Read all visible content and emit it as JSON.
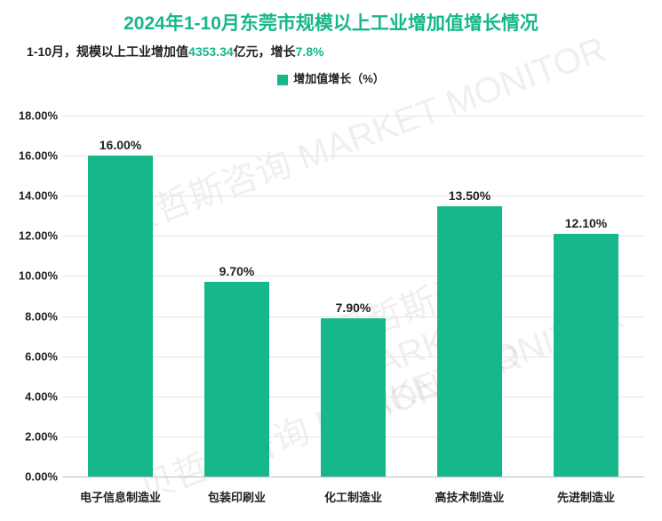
{
  "chart": {
    "type": "bar",
    "title": "2024年1-10月东莞市规模以上工业增加值增长情况",
    "title_fontsize": 21,
    "title_color": "#16b78b",
    "subtitle_prefix": "1-10月，规模以上工业增加值",
    "subtitle_value": "4353.34",
    "subtitle_mid": "亿元，增长",
    "subtitle_growth": "7.8%",
    "subtitle_fontsize": 14,
    "subtitle_text_color": "#222222",
    "subtitle_accent_color": "#16b78b",
    "legend_label": "增加值增长（%）",
    "legend_fontsize": 13,
    "legend_text_color": "#222222",
    "legend_marker_color": "#16b78b",
    "categories": [
      "电子信息制造业",
      "包装印刷业",
      "化工制造业",
      "高技术制造业",
      "先进制造业"
    ],
    "values": [
      16.0,
      9.7,
      7.9,
      13.5,
      12.1
    ],
    "value_labels": [
      "16.00%",
      "9.70%",
      "7.90%",
      "13.50%",
      "12.10%"
    ],
    "bar_color": "#16b78b",
    "bar_width": 0.55,
    "value_label_fontsize": 14,
    "value_label_color": "#222222",
    "ymin": 0,
    "ymax": 18,
    "ytick_step": 2,
    "yticks": [
      0,
      2,
      4,
      6,
      8,
      10,
      12,
      14,
      16,
      18
    ],
    "ytick_labels": [
      "0.00%",
      "2.00%",
      "4.00%",
      "6.00%",
      "8.00%",
      "10.00%",
      "12.00%",
      "14.00%",
      "16.00%",
      "18.00%"
    ],
    "ytick_fontsize": 13,
    "ytick_color": "#222222",
    "xtick_fontsize": 13,
    "xtick_color": "#222222",
    "grid_color": "#e6e6e6",
    "axis_line_color": "#bfbfbf",
    "background_color": "#ffffff",
    "watermark_hint": "贝哲斯咨询 MARKET MONITOR"
  }
}
